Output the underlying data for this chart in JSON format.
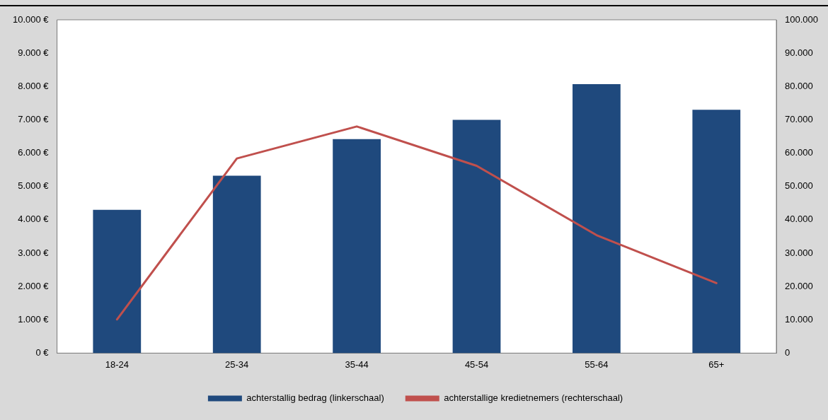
{
  "chart_data": {
    "type": "bar",
    "categories": [
      "18-24",
      "25-34",
      "35-44",
      "45-54",
      "55-64",
      "65+"
    ],
    "series": [
      {
        "name": "achterstallig bedrag (linkerschaal)",
        "color": "#1f497d",
        "values": [
          4300,
          5320,
          6420,
          7000,
          8070,
          7300
        ]
      },
      {
        "name": "achterstallige kredietnemers (rechterschaal)",
        "type": "line",
        "axis": "y2",
        "color": "#c0504d",
        "values": [
          10100,
          58400,
          68000,
          56200,
          35400,
          21000
        ]
      }
    ],
    "ylim": [
      0,
      10000
    ],
    "yticks": [
      {
        "value": 0,
        "label": "0 €"
      },
      {
        "value": 1000,
        "label": "1.000 €"
      },
      {
        "value": 2000,
        "label": "2.000 €"
      },
      {
        "value": 3000,
        "label": "3.000 €"
      },
      {
        "value": 4000,
        "label": "4.000 €"
      },
      {
        "value": 5000,
        "label": "5.000 €"
      },
      {
        "value": 6000,
        "label": "6.000 €"
      },
      {
        "value": 7000,
        "label": "7.000 €"
      },
      {
        "value": 8000,
        "label": "8.000 €"
      },
      {
        "value": 9000,
        "label": "9.000 €"
      },
      {
        "value": 10000,
        "label": "10.000 €"
      }
    ],
    "y2lim": [
      0,
      100000
    ],
    "y2ticks": [
      0,
      {
        "value": 10000,
        "label": "10.000"
      },
      {
        "value": 20000,
        "label": "20.000"
      },
      {
        "value": 30000,
        "label": "30.000"
      },
      {
        "value": 40000,
        "label": "40.000"
      },
      {
        "value": 50000,
        "label": "50.000"
      },
      {
        "value": 60000,
        "label": "60.000"
      },
      {
        "value": 70000,
        "label": "70.000"
      },
      {
        "value": 80000,
        "label": "80.000"
      },
      {
        "value": 90000,
        "label": "90.000"
      },
      {
        "value": 100000,
        "label": "100.000"
      }
    ],
    "grid": false,
    "legend": "bottom",
    "marker": "none",
    "line_style": "solid"
  }
}
